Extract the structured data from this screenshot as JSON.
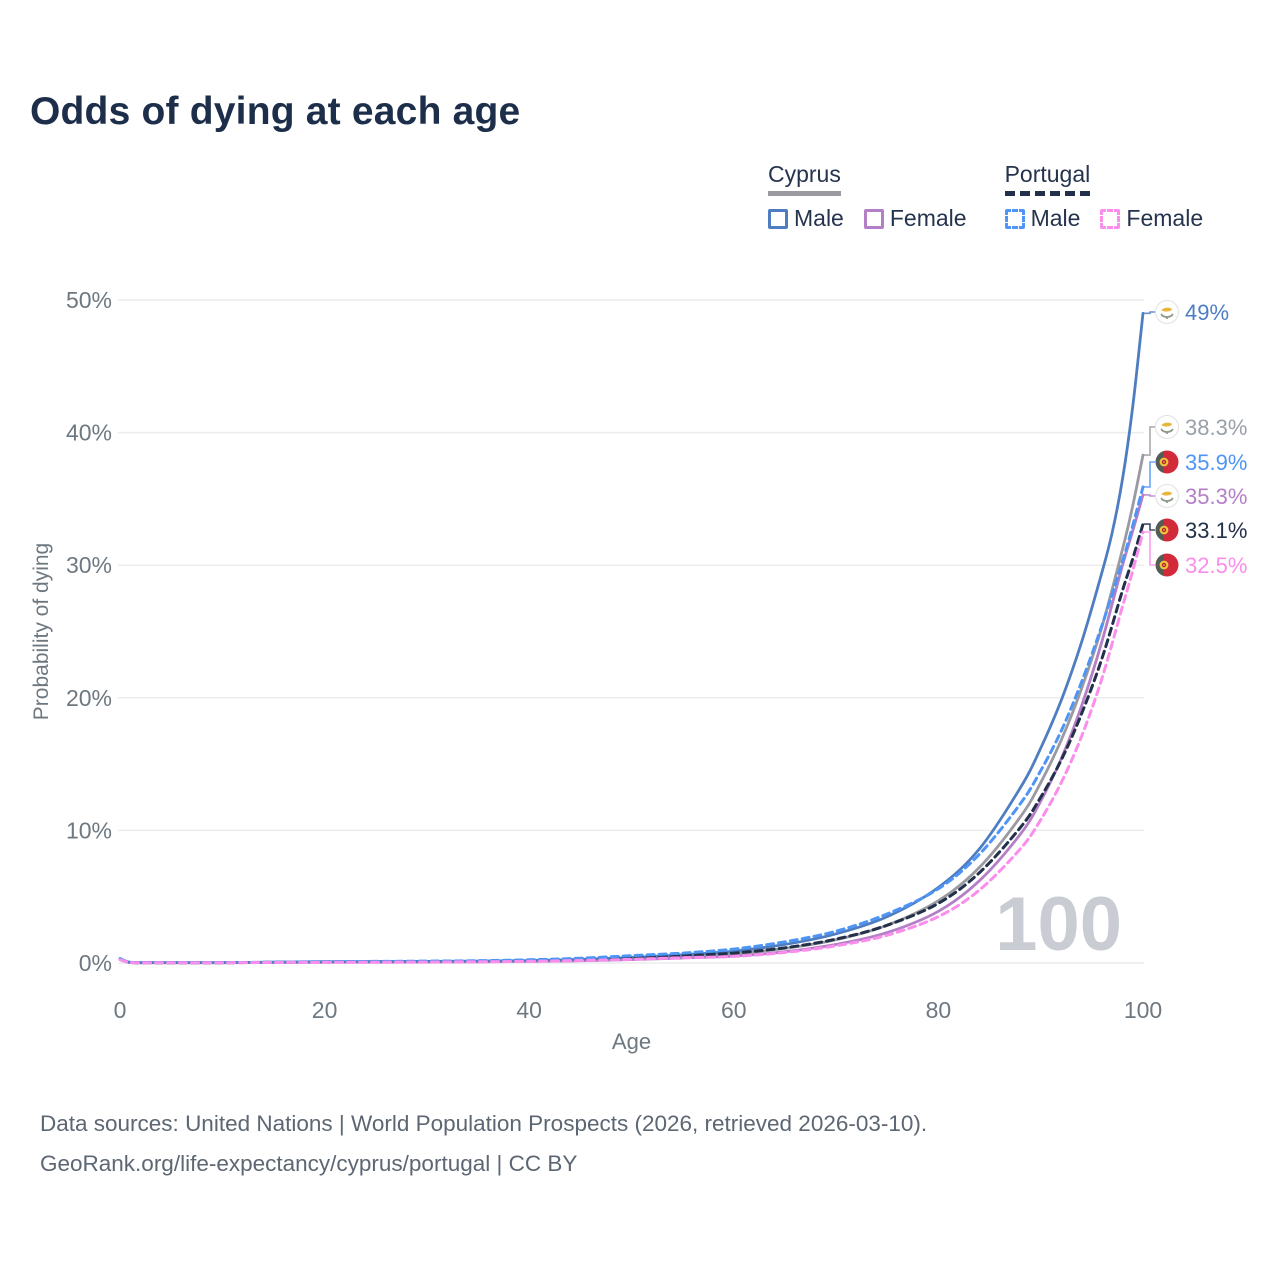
{
  "title": "Odds of dying at each age",
  "watermark_age": "100",
  "axes": {
    "x": {
      "label": "Age",
      "min": 0,
      "max": 100,
      "ticks": [
        0,
        20,
        40,
        60,
        80,
        100
      ]
    },
    "y": {
      "label": "Probability of dying",
      "min": 0,
      "max": 50,
      "tick_labels": [
        "0%",
        "10%",
        "20%",
        "30%",
        "40%",
        "50%"
      ],
      "tick_values": [
        0,
        10,
        20,
        30,
        40,
        50
      ]
    }
  },
  "legend": {
    "groups": [
      {
        "country": "Cyprus",
        "line_style": "solid",
        "underline_color": "#9a9aa0",
        "items": [
          {
            "label": "Male",
            "color": "#4e7ec1"
          },
          {
            "label": "Female",
            "color": "#b47fc6"
          }
        ]
      },
      {
        "country": "Portugal",
        "line_style": "dashed",
        "underline_color": "#22304a",
        "items": [
          {
            "label": "Male",
            "color": "#4e95f5"
          },
          {
            "label": "Female",
            "color": "#fb8ded"
          }
        ]
      }
    ]
  },
  "colors": {
    "title": "#1c2e4a",
    "tick_text": "#6e7880",
    "gridline": "#ececef",
    "watermark": "#c9ccd2",
    "footer_text": "#5d6773"
  },
  "footer": {
    "line1": "Data sources: United Nations | World Population Prospects (2026, retrieved 2026-03-10).",
    "line2": "GeoRank.org/life-expectancy/cyprus/portugal | CC BY"
  },
  "chart_data": {
    "type": "line",
    "title": "Odds of dying at each age",
    "xlabel": "Age",
    "ylabel": "Probability of dying",
    "xlim": [
      0,
      100
    ],
    "ylim": [
      0,
      50
    ],
    "grid": "horizontal",
    "legend_position": "top-right",
    "series": [
      {
        "id": "cyprus-combined",
        "name": "Cyprus (both sexes)",
        "country": "Cyprus",
        "flag": "cy",
        "color": "#9a9aa0",
        "dash": false,
        "end_value": 38.3,
        "end_label": "38.3%",
        "points": [
          [
            0,
            0.29
          ],
          [
            1,
            0.045
          ],
          [
            3,
            0.025
          ],
          [
            5,
            0.025
          ],
          [
            10,
            0.025
          ],
          [
            15,
            0.05
          ],
          [
            20,
            0.08
          ],
          [
            25,
            0.09
          ],
          [
            30,
            0.1
          ],
          [
            35,
            0.12
          ],
          [
            40,
            0.15
          ],
          [
            45,
            0.22
          ],
          [
            50,
            0.34
          ],
          [
            55,
            0.5
          ],
          [
            60,
            0.7
          ],
          [
            65,
            1.1
          ],
          [
            70,
            1.75
          ],
          [
            75,
            2.85
          ],
          [
            80,
            4.7
          ],
          [
            84,
            7.2
          ],
          [
            88,
            11.0
          ],
          [
            90,
            13.6
          ],
          [
            92,
            16.8
          ],
          [
            94,
            20.7
          ],
          [
            96,
            25.4
          ],
          [
            98,
            31.2
          ],
          [
            99,
            34.5
          ],
          [
            100,
            38.3
          ]
        ]
      },
      {
        "id": "cyprus-female",
        "name": "Cyprus Female",
        "country": "Cyprus",
        "flag": "cy",
        "color": "#b47fc6",
        "dash": false,
        "end_value": 35.3,
        "end_label": "35.3%",
        "points": [
          [
            0,
            0.26
          ],
          [
            1,
            0.04
          ],
          [
            3,
            0.02
          ],
          [
            5,
            0.02
          ],
          [
            10,
            0.02
          ],
          [
            15,
            0.04
          ],
          [
            20,
            0.05
          ],
          [
            25,
            0.06
          ],
          [
            30,
            0.07
          ],
          [
            35,
            0.09
          ],
          [
            40,
            0.12
          ],
          [
            45,
            0.17
          ],
          [
            50,
            0.26
          ],
          [
            55,
            0.38
          ],
          [
            60,
            0.52
          ],
          [
            65,
            0.85
          ],
          [
            70,
            1.4
          ],
          [
            75,
            2.3
          ],
          [
            80,
            3.9
          ],
          [
            84,
            6.2
          ],
          [
            88,
            9.7
          ],
          [
            90,
            12.2
          ],
          [
            92,
            15.4
          ],
          [
            94,
            19.4
          ],
          [
            96,
            24.3
          ],
          [
            98,
            30.0
          ],
          [
            99,
            32.6
          ],
          [
            100,
            35.3
          ]
        ]
      },
      {
        "id": "cyprus-male",
        "name": "Cyprus Male",
        "country": "Cyprus",
        "flag": "cy",
        "color": "#4e7ec1",
        "dash": false,
        "end_value": 49,
        "end_label": "49%",
        "points": [
          [
            0,
            0.33
          ],
          [
            1,
            0.05
          ],
          [
            3,
            0.03
          ],
          [
            5,
            0.03
          ],
          [
            10,
            0.03
          ],
          [
            15,
            0.06
          ],
          [
            20,
            0.1
          ],
          [
            25,
            0.11
          ],
          [
            30,
            0.12
          ],
          [
            35,
            0.14
          ],
          [
            40,
            0.18
          ],
          [
            45,
            0.27
          ],
          [
            50,
            0.42
          ],
          [
            55,
            0.62
          ],
          [
            60,
            0.9
          ],
          [
            65,
            1.4
          ],
          [
            70,
            2.2
          ],
          [
            75,
            3.5
          ],
          [
            80,
            5.7
          ],
          [
            84,
            8.6
          ],
          [
            88,
            13.2
          ],
          [
            90,
            16.2
          ],
          [
            92,
            19.8
          ],
          [
            94,
            24.2
          ],
          [
            96,
            29.5
          ],
          [
            97,
            32.5
          ],
          [
            98,
            36.5
          ],
          [
            99,
            42.0
          ],
          [
            100,
            49.0
          ]
        ]
      },
      {
        "id": "portugal-combined",
        "name": "Portugal (both sexes)",
        "country": "Portugal",
        "flag": "pt",
        "color": "#22304a",
        "dash": true,
        "end_value": 33.1,
        "end_label": "33.1%",
        "points": [
          [
            0,
            0.29
          ],
          [
            1,
            0.045
          ],
          [
            3,
            0.025
          ],
          [
            5,
            0.025
          ],
          [
            10,
            0.025
          ],
          [
            15,
            0.05
          ],
          [
            20,
            0.08
          ],
          [
            25,
            0.09
          ],
          [
            30,
            0.11
          ],
          [
            35,
            0.13
          ],
          [
            40,
            0.18
          ],
          [
            45,
            0.27
          ],
          [
            50,
            0.4
          ],
          [
            55,
            0.55
          ],
          [
            60,
            0.75
          ],
          [
            65,
            1.15
          ],
          [
            70,
            1.8
          ],
          [
            75,
            2.85
          ],
          [
            80,
            4.5
          ],
          [
            84,
            6.8
          ],
          [
            88,
            10.2
          ],
          [
            90,
            12.5
          ],
          [
            92,
            15.3
          ],
          [
            94,
            18.8
          ],
          [
            96,
            23.0
          ],
          [
            98,
            28.1
          ],
          [
            99,
            30.5
          ],
          [
            100,
            33.1
          ]
        ]
      },
      {
        "id": "portugal-male",
        "name": "Portugal Male",
        "country": "Portugal",
        "flag": "pt",
        "color": "#4e95f5",
        "dash": true,
        "end_value": 35.9,
        "end_label": "35.9%",
        "points": [
          [
            0,
            0.33
          ],
          [
            1,
            0.05
          ],
          [
            3,
            0.03
          ],
          [
            5,
            0.03
          ],
          [
            10,
            0.03
          ],
          [
            15,
            0.06
          ],
          [
            20,
            0.1
          ],
          [
            25,
            0.12
          ],
          [
            30,
            0.14
          ],
          [
            35,
            0.17
          ],
          [
            40,
            0.24
          ],
          [
            45,
            0.36
          ],
          [
            50,
            0.55
          ],
          [
            55,
            0.75
          ],
          [
            60,
            1.05
          ],
          [
            65,
            1.6
          ],
          [
            70,
            2.4
          ],
          [
            75,
            3.7
          ],
          [
            80,
            5.6
          ],
          [
            84,
            8.2
          ],
          [
            88,
            12.0
          ],
          [
            90,
            14.5
          ],
          [
            92,
            17.5
          ],
          [
            94,
            21.2
          ],
          [
            96,
            25.5
          ],
          [
            98,
            30.3
          ],
          [
            99,
            33.0
          ],
          [
            100,
            35.9
          ]
        ]
      },
      {
        "id": "portugal-female",
        "name": "Portugal Female",
        "country": "Portugal",
        "flag": "pt",
        "color": "#fb8ded",
        "dash": true,
        "end_value": 32.5,
        "end_label": "32.5%",
        "points": [
          [
            0,
            0.26
          ],
          [
            1,
            0.04
          ],
          [
            3,
            0.02
          ],
          [
            5,
            0.02
          ],
          [
            10,
            0.02
          ],
          [
            15,
            0.04
          ],
          [
            20,
            0.05
          ],
          [
            25,
            0.06
          ],
          [
            30,
            0.07
          ],
          [
            35,
            0.09
          ],
          [
            40,
            0.13
          ],
          [
            45,
            0.19
          ],
          [
            50,
            0.28
          ],
          [
            55,
            0.4
          ],
          [
            60,
            0.5
          ],
          [
            65,
            0.8
          ],
          [
            70,
            1.3
          ],
          [
            75,
            2.1
          ],
          [
            80,
            3.5
          ],
          [
            84,
            5.5
          ],
          [
            88,
            8.6
          ],
          [
            90,
            10.8
          ],
          [
            92,
            13.6
          ],
          [
            94,
            17.1
          ],
          [
            96,
            21.5
          ],
          [
            98,
            26.9
          ],
          [
            99,
            29.6
          ],
          [
            100,
            32.5
          ]
        ]
      }
    ]
  }
}
